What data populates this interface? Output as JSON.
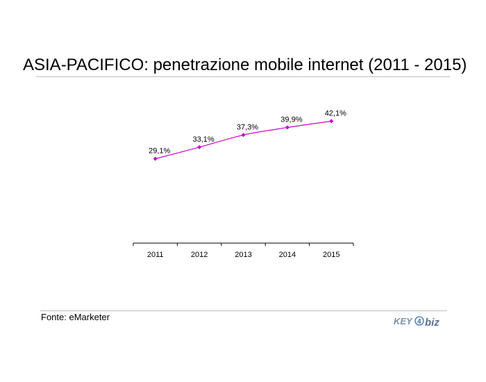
{
  "title": "ASIA-PACIFICO: penetrazione mobile internet (2011 - 2015)",
  "source": "Fonte: eMarketer",
  "logo": {
    "text_key": "KEY",
    "text_4": "4",
    "text_biz": "biz"
  },
  "chart_data": {
    "type": "line",
    "title": "ASIA-PACIFICO: penetrazione mobile internet (2011 - 2015)",
    "categories": [
      "2011",
      "2012",
      "2013",
      "2014",
      "2015"
    ],
    "series": [
      {
        "values": [
          29.1,
          33.1,
          37.3,
          39.9,
          42.1
        ],
        "labels": [
          "29,1%",
          "33,1%",
          "37,3%",
          "39,9%",
          "42,1%"
        ],
        "color": "#cc00cc"
      }
    ],
    "ylim": [
      0,
      70
    ],
    "grid": false,
    "legend": "none",
    "xlabel": "",
    "ylabel": ""
  }
}
